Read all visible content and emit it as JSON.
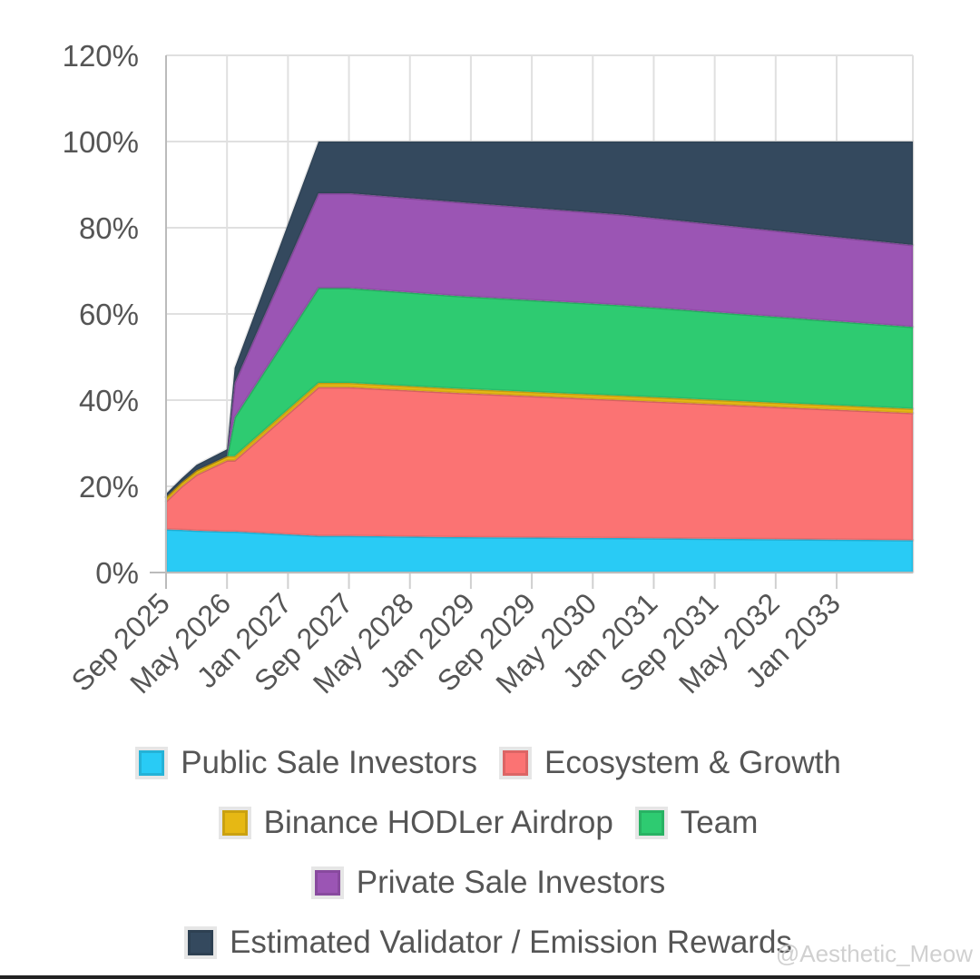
{
  "chart_data": {
    "type": "area",
    "stacked": true,
    "title": "",
    "xlabel": "",
    "ylabel": "",
    "ylim": [
      0,
      120
    ],
    "y_ticks": [
      "0%",
      "20%",
      "40%",
      "60%",
      "80%",
      "100%",
      "120%"
    ],
    "x_tick_labels": [
      "Sep 2025",
      "May 2026",
      "Jan 2027",
      "Sep 2027",
      "May 2028",
      "Jan 2029",
      "Sep 2029",
      "May 2030",
      "Jan 2031",
      "Sep 2031",
      "May 2032",
      "Jan 2033"
    ],
    "x_months": [
      0,
      2,
      4,
      8,
      9,
      20,
      24,
      38,
      60,
      98
    ],
    "series": [
      {
        "name": "Public Sale Investors",
        "color": "#29cbf5",
        "values": [
          10,
          9.9,
          9.7,
          9.5,
          9.5,
          8.5,
          8.5,
          8.2,
          8,
          7.5
        ]
      },
      {
        "name": "Ecosystem & Growth",
        "color": "#fb7373",
        "values": [
          6.5,
          10,
          13,
          16.5,
          16.5,
          34.5,
          34.5,
          33.5,
          32,
          29.5
        ]
      },
      {
        "name": "Binance HODLer Airdrop",
        "color": "#e6b814",
        "values": [
          1,
          1,
          1,
          1,
          1,
          1,
          1,
          1,
          1,
          1
        ]
      },
      {
        "name": "Team",
        "color": "#2ecb71",
        "values": [
          0,
          0,
          0,
          0,
          9,
          22,
          22,
          21.5,
          21,
          19
        ]
      },
      {
        "name": "Private Sale Investors",
        "color": "#9b55b4",
        "values": [
          0,
          0,
          0,
          0,
          8,
          22,
          22,
          21.8,
          21,
          19
        ]
      },
      {
        "name": "Estimated Validator / Emission Rewards",
        "color": "#34495e",
        "values": [
          0.8,
          0.9,
          1.3,
          1.6,
          3.5,
          12,
          12,
          14,
          17,
          24
        ]
      }
    ],
    "grid": true,
    "legend_position": "bottom"
  },
  "watermark": "@Aesthetic_Meow"
}
